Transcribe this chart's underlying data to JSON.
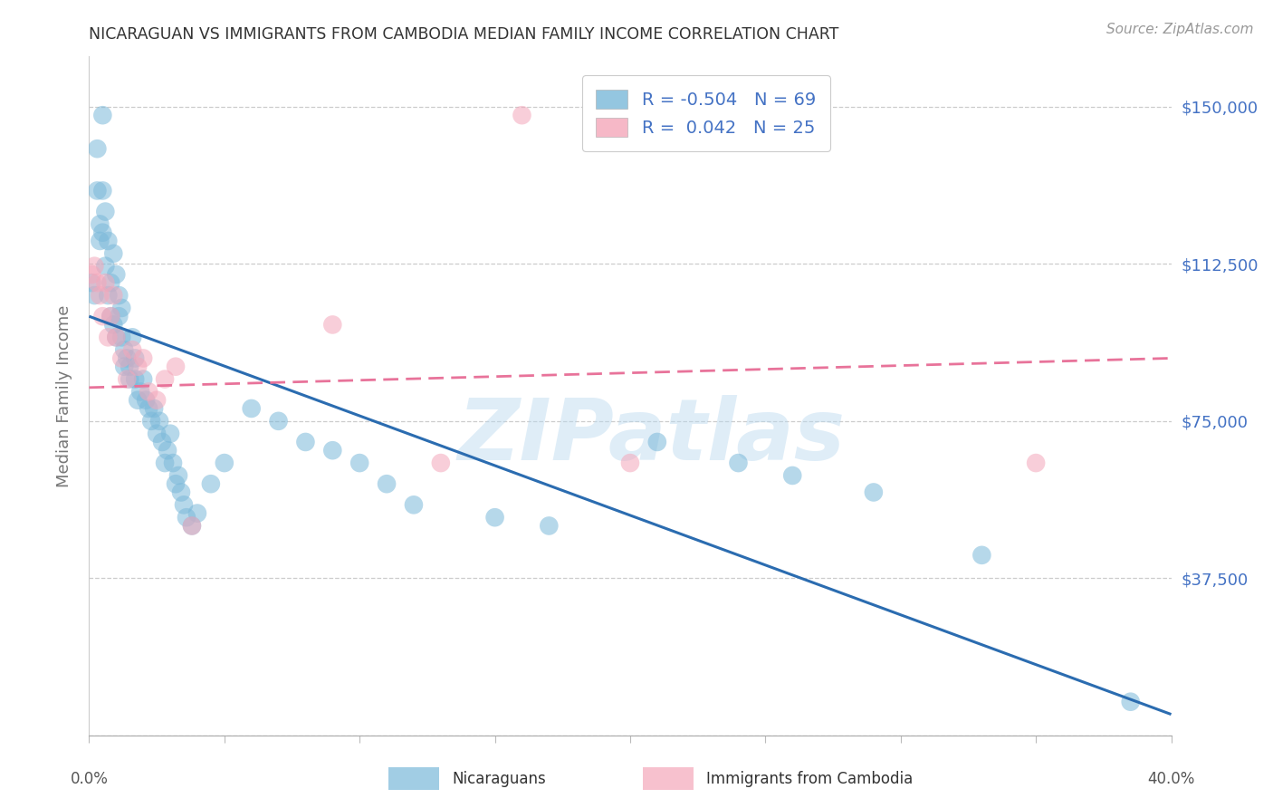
{
  "title": "NICARAGUAN VS IMMIGRANTS FROM CAMBODIA MEDIAN FAMILY INCOME CORRELATION CHART",
  "source": "Source: ZipAtlas.com",
  "ylabel": "Median Family Income",
  "yticks": [
    0,
    37500,
    75000,
    112500,
    150000
  ],
  "ytick_labels": [
    "",
    "$37,500",
    "$75,000",
    "$112,500",
    "$150,000"
  ],
  "xmin": 0.0,
  "xmax": 0.4,
  "ymin": 0,
  "ymax": 162000,
  "blue_legend_text": "R = -0.504   N = 69",
  "pink_legend_text": "R =  0.042   N = 25",
  "legend_label_blue": "Nicaraguans",
  "legend_label_pink": "Immigrants from Cambodia",
  "blue_color": "#7ab8d9",
  "pink_color": "#f4a7ba",
  "blue_line_color": "#2b6cb0",
  "pink_line_color": "#e8739a",
  "watermark": "ZIPatlas",
  "title_color": "#333333",
  "axis_label_color": "#777777",
  "ytick_color": "#4472c4",
  "grid_color": "#cccccc",
  "background_color": "#ffffff",
  "blue_scatter_x": [
    0.001,
    0.002,
    0.003,
    0.003,
    0.004,
    0.004,
    0.005,
    0.005,
    0.005,
    0.006,
    0.006,
    0.007,
    0.007,
    0.008,
    0.008,
    0.009,
    0.009,
    0.01,
    0.01,
    0.011,
    0.011,
    0.012,
    0.012,
    0.013,
    0.013,
    0.014,
    0.015,
    0.015,
    0.016,
    0.017,
    0.017,
    0.018,
    0.019,
    0.02,
    0.021,
    0.022,
    0.023,
    0.024,
    0.025,
    0.026,
    0.027,
    0.028,
    0.029,
    0.03,
    0.031,
    0.032,
    0.033,
    0.034,
    0.035,
    0.036,
    0.038,
    0.04,
    0.045,
    0.05,
    0.06,
    0.07,
    0.08,
    0.09,
    0.1,
    0.11,
    0.12,
    0.15,
    0.17,
    0.21,
    0.24,
    0.26,
    0.29,
    0.33,
    0.385
  ],
  "blue_scatter_y": [
    108000,
    105000,
    140000,
    130000,
    122000,
    118000,
    148000,
    130000,
    120000,
    125000,
    112000,
    118000,
    105000,
    108000,
    100000,
    115000,
    98000,
    110000,
    95000,
    100000,
    105000,
    95000,
    102000,
    92000,
    88000,
    90000,
    88000,
    85000,
    95000,
    85000,
    90000,
    80000,
    82000,
    85000,
    80000,
    78000,
    75000,
    78000,
    72000,
    75000,
    70000,
    65000,
    68000,
    72000,
    65000,
    60000,
    62000,
    58000,
    55000,
    52000,
    50000,
    53000,
    60000,
    65000,
    78000,
    75000,
    70000,
    68000,
    65000,
    60000,
    55000,
    52000,
    50000,
    70000,
    65000,
    62000,
    58000,
    43000,
    8000
  ],
  "pink_scatter_x": [
    0.001,
    0.002,
    0.003,
    0.004,
    0.005,
    0.006,
    0.007,
    0.008,
    0.009,
    0.01,
    0.012,
    0.014,
    0.016,
    0.018,
    0.02,
    0.022,
    0.025,
    0.028,
    0.032,
    0.038,
    0.09,
    0.13,
    0.16,
    0.2,
    0.35
  ],
  "pink_scatter_y": [
    110000,
    112000,
    108000,
    105000,
    100000,
    108000,
    95000,
    100000,
    105000,
    95000,
    90000,
    85000,
    92000,
    88000,
    90000,
    82000,
    80000,
    85000,
    88000,
    50000,
    98000,
    65000,
    148000,
    65000,
    65000
  ],
  "blue_line_x0": 0.0,
  "blue_line_y0": 100000,
  "blue_line_x1": 0.4,
  "blue_line_y1": 5000,
  "pink_line_x0": 0.0,
  "pink_line_y0": 83000,
  "pink_line_x1": 0.4,
  "pink_line_y1": 90000
}
